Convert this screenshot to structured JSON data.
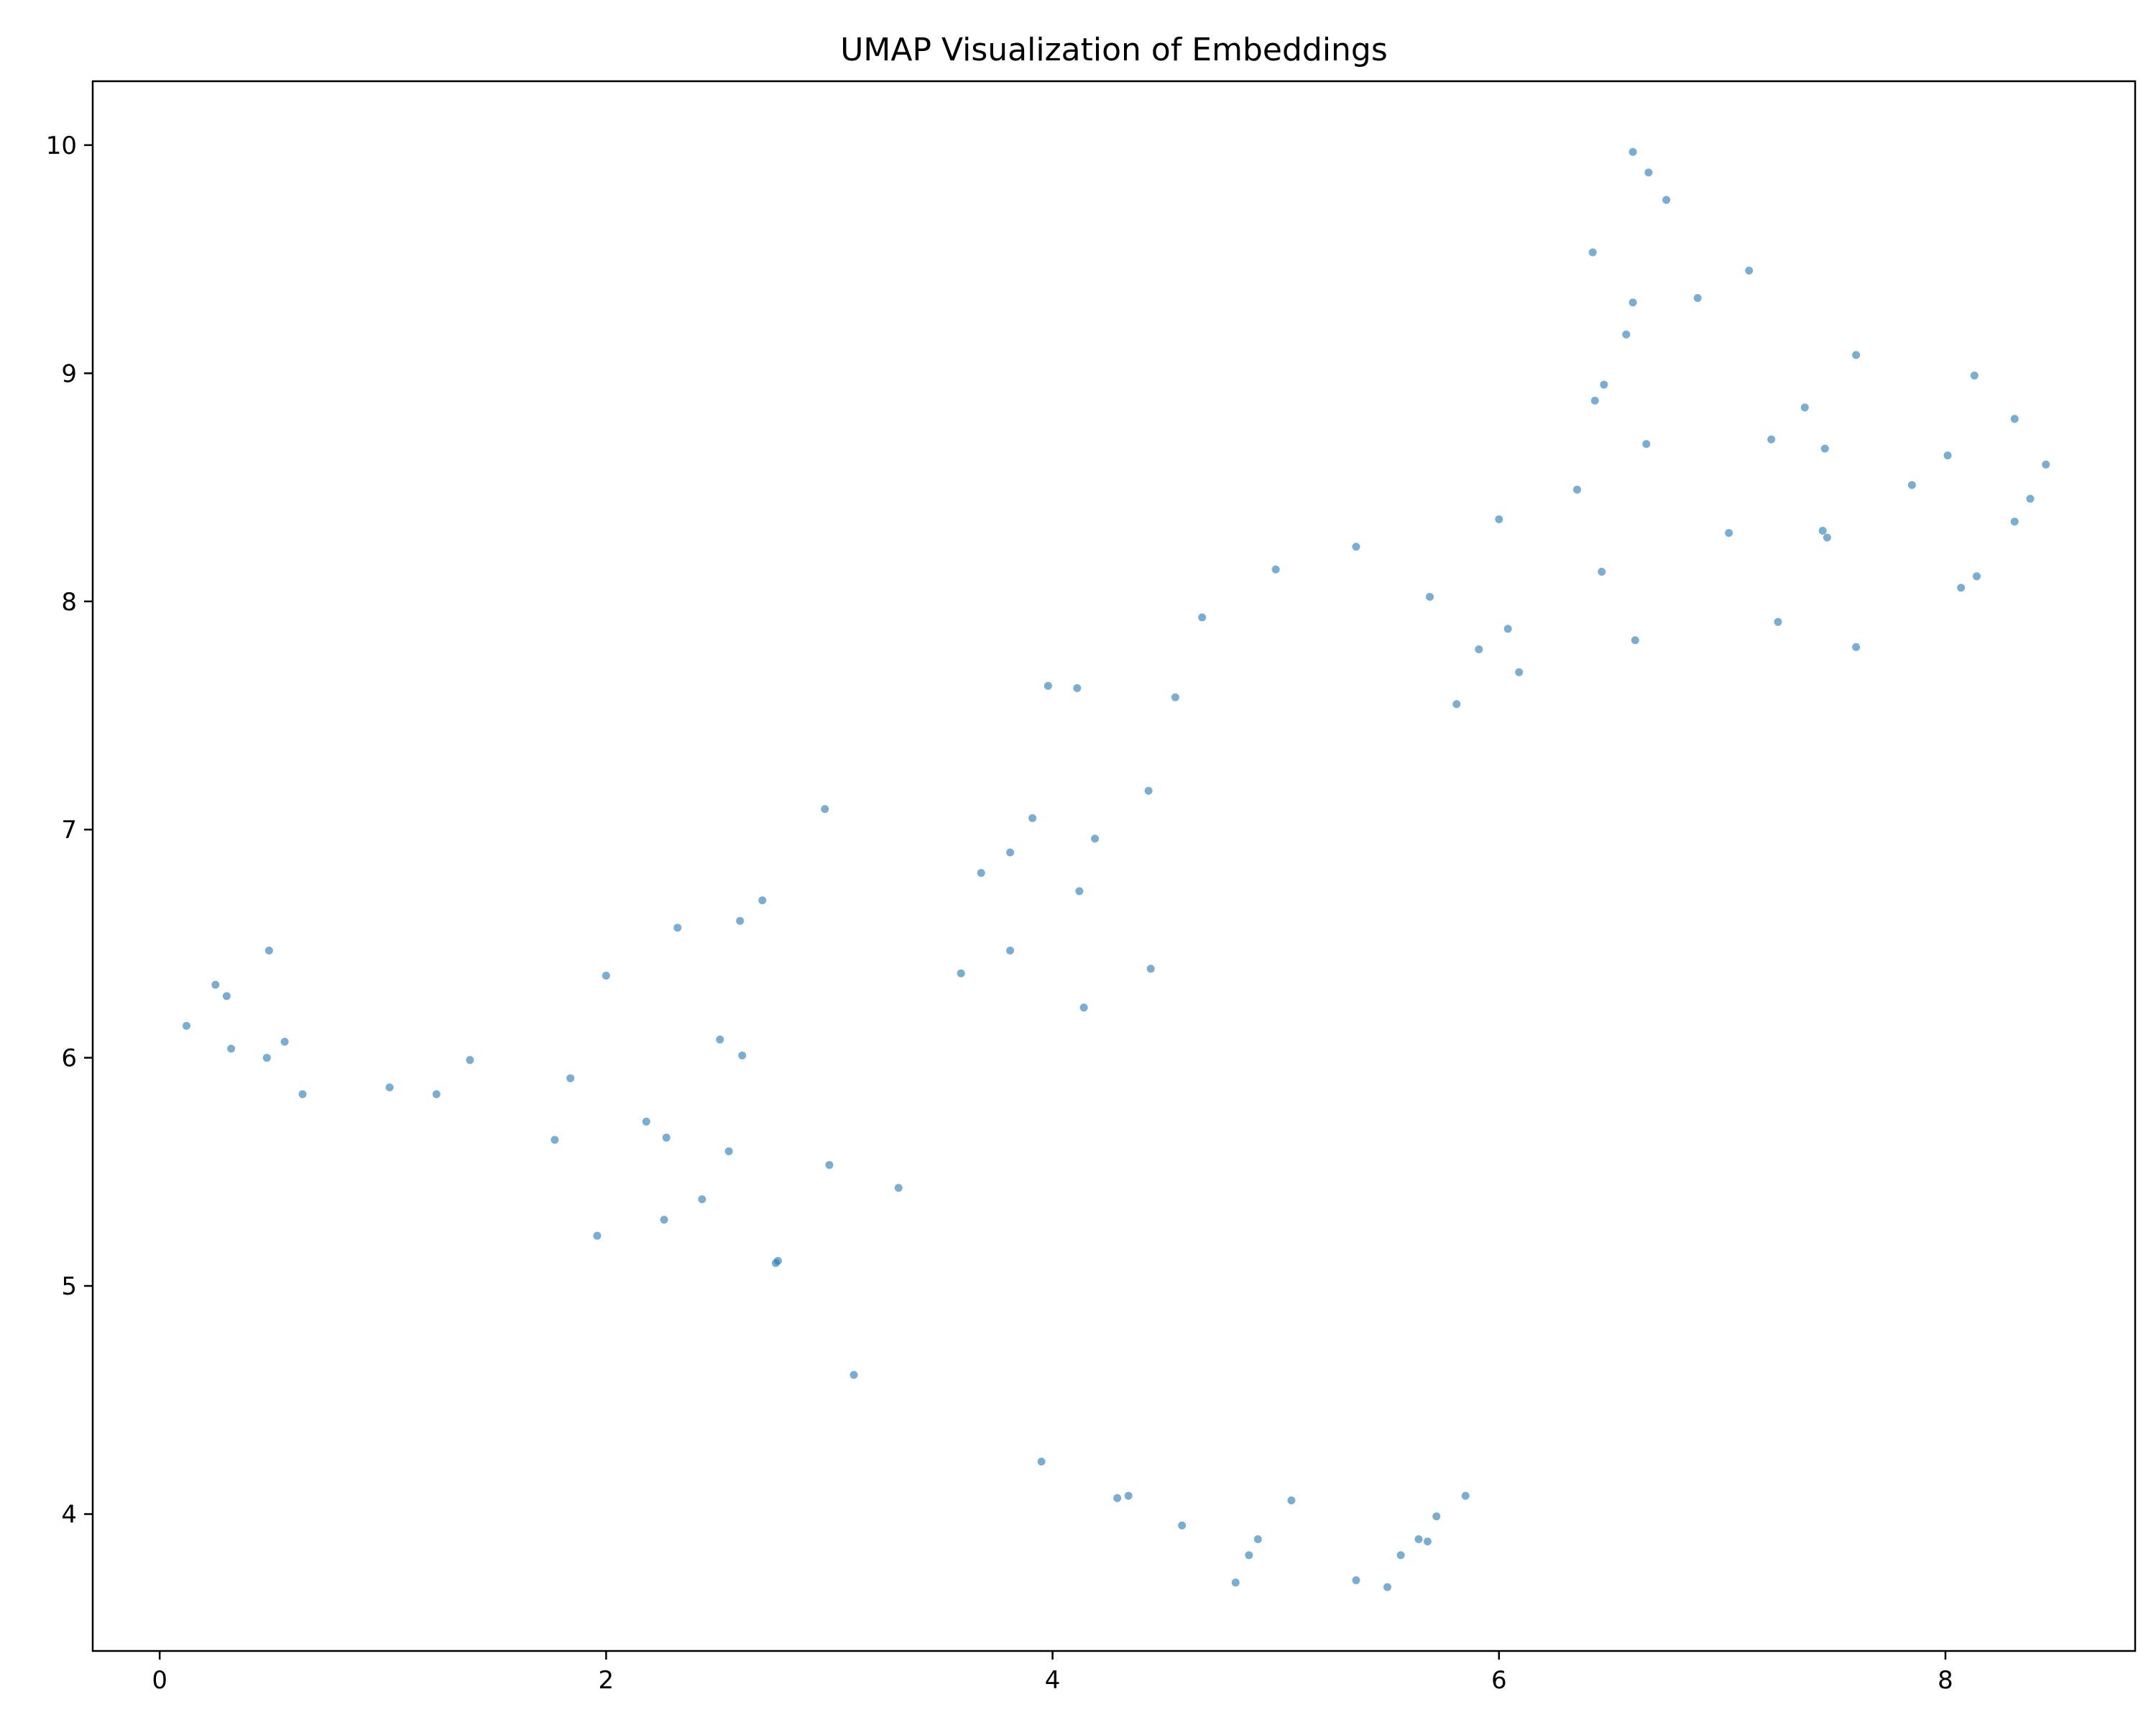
{
  "chart_data": {
    "type": "scatter",
    "title": "UMAP Visualization of Embeddings",
    "xlabel": "",
    "ylabel": "",
    "xlim": [
      -0.3,
      8.85
    ],
    "ylim": [
      3.4,
      10.28
    ],
    "xticks": [
      0,
      2,
      4,
      6,
      8
    ],
    "yticks": [
      4,
      5,
      6,
      7,
      8,
      9,
      10
    ],
    "xtick_labels": [
      "0",
      "2",
      "4",
      "6",
      "8"
    ],
    "ytick_labels": [
      "4",
      "5",
      "6",
      "7",
      "8",
      "9",
      "10"
    ],
    "grid": false,
    "legend": "none",
    "marker_color": "#1f77b4",
    "marker_alpha": 0.6,
    "points": [
      {
        "x": 0.12,
        "y": 6.14
      },
      {
        "x": 0.25,
        "y": 6.32
      },
      {
        "x": 0.3,
        "y": 6.27
      },
      {
        "x": 0.32,
        "y": 6.04
      },
      {
        "x": 0.48,
        "y": 6.0
      },
      {
        "x": 0.49,
        "y": 6.47
      },
      {
        "x": 0.56,
        "y": 6.07
      },
      {
        "x": 0.64,
        "y": 5.84
      },
      {
        "x": 1.03,
        "y": 5.87
      },
      {
        "x": 1.24,
        "y": 5.84
      },
      {
        "x": 1.39,
        "y": 5.99
      },
      {
        "x": 1.77,
        "y": 5.64
      },
      {
        "x": 1.84,
        "y": 5.91
      },
      {
        "x": 1.96,
        "y": 5.22
      },
      {
        "x": 2.0,
        "y": 6.36
      },
      {
        "x": 2.18,
        "y": 5.72
      },
      {
        "x": 2.26,
        "y": 5.29
      },
      {
        "x": 2.27,
        "y": 5.65
      },
      {
        "x": 2.32,
        "y": 6.57
      },
      {
        "x": 2.43,
        "y": 5.38
      },
      {
        "x": 2.51,
        "y": 6.08
      },
      {
        "x": 2.55,
        "y": 5.59
      },
      {
        "x": 2.6,
        "y": 6.6
      },
      {
        "x": 2.61,
        "y": 6.01
      },
      {
        "x": 2.7,
        "y": 6.69
      },
      {
        "x": 2.76,
        "y": 5.1
      },
      {
        "x": 2.77,
        "y": 5.11
      },
      {
        "x": 2.98,
        "y": 7.09
      },
      {
        "x": 3.0,
        "y": 5.53
      },
      {
        "x": 3.11,
        "y": 4.61
      },
      {
        "x": 3.31,
        "y": 5.43
      },
      {
        "x": 3.59,
        "y": 6.37
      },
      {
        "x": 3.68,
        "y": 6.81
      },
      {
        "x": 3.81,
        "y": 6.9
      },
      {
        "x": 3.81,
        "y": 6.47
      },
      {
        "x": 3.91,
        "y": 7.05
      },
      {
        "x": 3.95,
        "y": 4.23
      },
      {
        "x": 3.98,
        "y": 7.63
      },
      {
        "x": 4.11,
        "y": 7.62
      },
      {
        "x": 4.12,
        "y": 6.73
      },
      {
        "x": 4.14,
        "y": 6.22
      },
      {
        "x": 4.19,
        "y": 6.96
      },
      {
        "x": 4.29,
        "y": 4.07
      },
      {
        "x": 4.34,
        "y": 4.08
      },
      {
        "x": 4.43,
        "y": 7.17
      },
      {
        "x": 4.44,
        "y": 6.39
      },
      {
        "x": 4.55,
        "y": 7.58
      },
      {
        "x": 4.58,
        "y": 3.95
      },
      {
        "x": 4.67,
        "y": 7.93
      },
      {
        "x": 4.82,
        "y": 3.7
      },
      {
        "x": 4.88,
        "y": 3.82
      },
      {
        "x": 4.92,
        "y": 3.89
      },
      {
        "x": 5.0,
        "y": 8.14
      },
      {
        "x": 5.07,
        "y": 4.06
      },
      {
        "x": 5.36,
        "y": 8.24
      },
      {
        "x": 5.36,
        "y": 3.71
      },
      {
        "x": 5.5,
        "y": 3.68
      },
      {
        "x": 5.56,
        "y": 3.82
      },
      {
        "x": 5.64,
        "y": 3.89
      },
      {
        "x": 5.68,
        "y": 3.88
      },
      {
        "x": 5.69,
        "y": 8.02
      },
      {
        "x": 5.72,
        "y": 3.99
      },
      {
        "x": 5.81,
        "y": 7.55
      },
      {
        "x": 5.85,
        "y": 4.08
      },
      {
        "x": 5.91,
        "y": 7.79
      },
      {
        "x": 6.0,
        "y": 8.36
      },
      {
        "x": 6.04,
        "y": 7.88
      },
      {
        "x": 6.09,
        "y": 7.69
      },
      {
        "x": 6.35,
        "y": 8.49
      },
      {
        "x": 6.42,
        "y": 9.53
      },
      {
        "x": 6.43,
        "y": 8.88
      },
      {
        "x": 6.46,
        "y": 8.13
      },
      {
        "x": 6.47,
        "y": 8.95
      },
      {
        "x": 6.57,
        "y": 9.17
      },
      {
        "x": 6.6,
        "y": 9.97
      },
      {
        "x": 6.6,
        "y": 9.31
      },
      {
        "x": 6.61,
        "y": 7.83
      },
      {
        "x": 6.66,
        "y": 8.69
      },
      {
        "x": 6.67,
        "y": 9.88
      },
      {
        "x": 6.75,
        "y": 9.76
      },
      {
        "x": 6.89,
        "y": 9.33
      },
      {
        "x": 7.03,
        "y": 8.3
      },
      {
        "x": 7.12,
        "y": 9.45
      },
      {
        "x": 7.22,
        "y": 8.71
      },
      {
        "x": 7.25,
        "y": 7.91
      },
      {
        "x": 7.37,
        "y": 8.85
      },
      {
        "x": 7.45,
        "y": 8.31
      },
      {
        "x": 7.46,
        "y": 8.67
      },
      {
        "x": 7.47,
        "y": 8.28
      },
      {
        "x": 7.6,
        "y": 9.08
      },
      {
        "x": 7.6,
        "y": 7.8
      },
      {
        "x": 7.85,
        "y": 8.51
      },
      {
        "x": 8.01,
        "y": 8.64
      },
      {
        "x": 8.07,
        "y": 8.06
      },
      {
        "x": 8.13,
        "y": 8.99
      },
      {
        "x": 8.14,
        "y": 8.11
      },
      {
        "x": 8.31,
        "y": 8.8
      },
      {
        "x": 8.31,
        "y": 8.35
      },
      {
        "x": 8.38,
        "y": 8.45
      },
      {
        "x": 8.45,
        "y": 8.6
      }
    ]
  }
}
